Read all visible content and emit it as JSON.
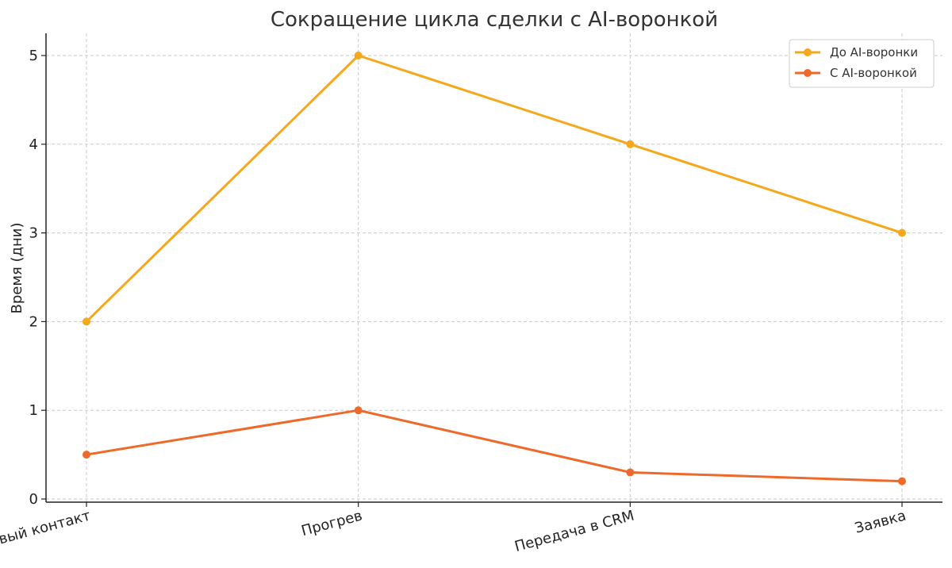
{
  "chart_data": {
    "type": "line",
    "title": "Сокращение цикла сделки с AI-воронкой",
    "xlabel": "",
    "ylabel": "Время (дни)",
    "categories": [
      "Первый контакт",
      "Прогрев",
      "Передача в CRM",
      "Заявка"
    ],
    "ylim": [
      0,
      5.25
    ],
    "yticks": [
      0,
      1,
      2,
      3,
      4,
      5
    ],
    "grid": true,
    "legend_position": "top-right",
    "series": [
      {
        "name": "До AI-воронки",
        "color": "#F5A81C",
        "values": [
          2,
          5,
          4,
          3
        ]
      },
      {
        "name": "С AI-воронкой",
        "color": "#EE6A2A",
        "values": [
          0.5,
          1,
          0.3,
          0.2
        ]
      }
    ]
  }
}
